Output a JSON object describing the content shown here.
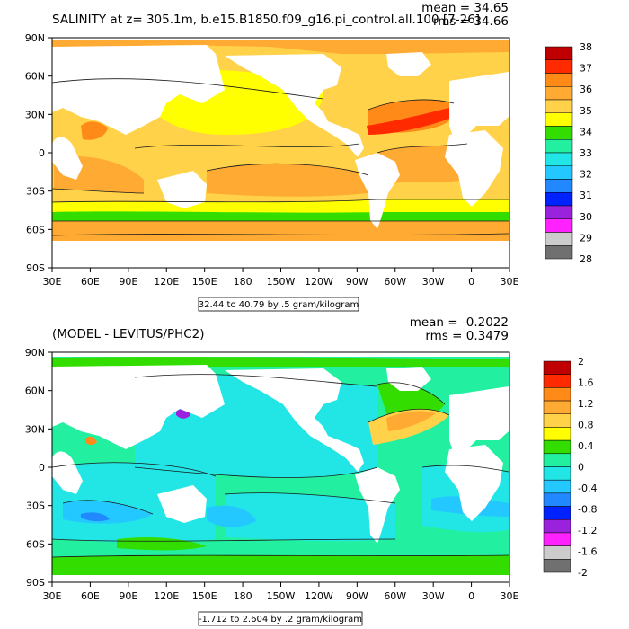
{
  "colors": {
    "land": "#ffffff",
    "outline": "#000000",
    "contour": "#1a1a1a"
  },
  "panels": [
    {
      "id": "top",
      "title": "SALINITY at z= 305.1m, b.e15.B1850.f09_g16.pi_control.all.100 [7-26]",
      "stat_mean": "mean = 34.65",
      "stat_rms": "rms = 34.66",
      "range_text": "32.44 to 40.79 by .5 gram/kilogram",
      "lat_labels": [
        "90N",
        "60N",
        "30N",
        "0",
        "30S",
        "60S",
        "90S"
      ],
      "lon_labels": [
        "30E",
        "60E",
        "90E",
        "120E",
        "150E",
        "180",
        "150W",
        "120W",
        "90W",
        "60W",
        "30W",
        "0",
        "30E"
      ],
      "colorbar": {
        "labels": [
          "38",
          "37",
          "36",
          "35",
          "34",
          "33",
          "32",
          "31",
          "30",
          "29",
          "28"
        ],
        "colors": [
          "#c00000",
          "#ff2a00",
          "#ff8a18",
          "#ffaa33",
          "#ffd24a",
          "#ffff00",
          "#33dd00",
          "#22f0a0",
          "#22e6e6",
          "#22c8ff",
          "#2288ff",
          "#0022ff",
          "#9a22dd",
          "#ff22ff",
          "#cccccc",
          "#707070"
        ]
      }
    },
    {
      "id": "bottom",
      "title": "(MODEL - LEVITUS/PHC2)",
      "stat_mean": "mean = -0.2022",
      "stat_rms": "rms = 0.3479",
      "range_text": "-1.712 to 2.604 by .2 gram/kilogram",
      "lat_labels": [
        "90N",
        "60N",
        "30N",
        "0",
        "30S",
        "60S",
        "90S"
      ],
      "lon_labels": [
        "30E",
        "60E",
        "90E",
        "120E",
        "150E",
        "180",
        "150W",
        "120W",
        "90W",
        "60W",
        "30W",
        "0",
        "30E"
      ],
      "colorbar": {
        "labels": [
          "2",
          "1.6",
          "1.2",
          "0.8",
          "0.4",
          "0",
          "-0.4",
          "-0.8",
          "-1.2",
          "-1.6",
          "-2"
        ],
        "colors": [
          "#c00000",
          "#ff2a00",
          "#ff8a18",
          "#ffaa33",
          "#ffd24a",
          "#ffff00",
          "#33dd00",
          "#22f0a0",
          "#22e6e6",
          "#22c8ff",
          "#2288ff",
          "#0022ff",
          "#9a22dd",
          "#ff22ff",
          "#cccccc",
          "#707070"
        ]
      }
    }
  ]
}
